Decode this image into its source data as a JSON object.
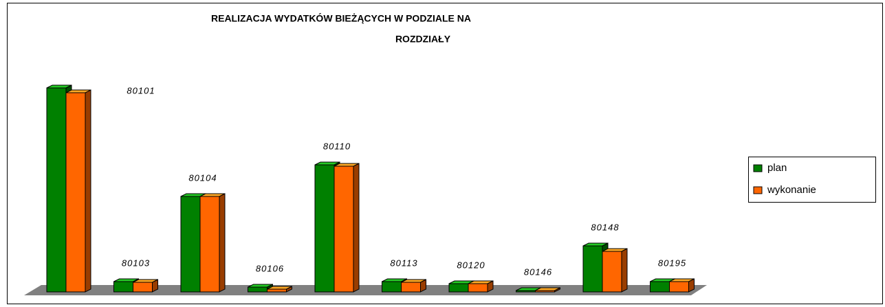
{
  "chart_data": {
    "type": "bar3d",
    "title": [
      "REALIZACJA WYDATKÓW BIEŻĄCYCH W PODZIALE NA",
      "ROZDZIAŁY"
    ],
    "categories": [
      "80101",
      "80103",
      "80104",
      "80106",
      "80110",
      "80113",
      "80120",
      "80146",
      "80148",
      "80195"
    ],
    "series": [
      {
        "name": "plan",
        "color": "#008000",
        "values": [
          297,
          15,
          139,
          7,
          185,
          15,
          12,
          2,
          67,
          15
        ]
      },
      {
        "name": "wykonanie",
        "color": "#ff6600",
        "values": [
          290,
          14,
          139,
          4,
          183,
          14,
          12,
          2,
          59,
          15
        ]
      }
    ],
    "legend": "right"
  }
}
